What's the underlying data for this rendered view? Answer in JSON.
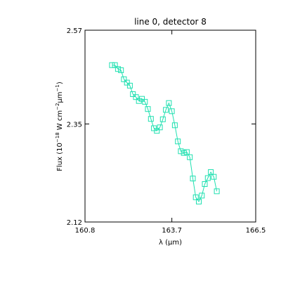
{
  "chart_data": {
    "type": "line",
    "title": "line 0, detector 8",
    "xlabel": "λ (μm)",
    "ylabel_parts": {
      "prefix": "Flux (10",
      "exp1": "−18",
      "mid1": " W cm",
      "exp2": "−2",
      "mu": "μm",
      "exp3": "−1",
      "suffix": ")"
    },
    "xlim": [
      160.8,
      166.5
    ],
    "ylim": [
      2.12,
      2.57
    ],
    "xticks": [
      160.8,
      163.7,
      166.5
    ],
    "xtick_labels": [
      "160.8",
      "163.7",
      "166.5"
    ],
    "yticks": [
      2.12,
      2.35,
      2.57
    ],
    "ytick_labels": [
      "2.12",
      "2.35",
      "2.57"
    ],
    "grid": false,
    "series": [
      {
        "color": "#1fe0b0",
        "marker": "open-square",
        "x": [
          161.7,
          161.8,
          161.9,
          162.0,
          162.1,
          162.2,
          162.3,
          162.4,
          162.5,
          162.6,
          162.7,
          162.8,
          162.9,
          163.0,
          163.1,
          163.2,
          163.3,
          163.4,
          163.5,
          163.6,
          163.7,
          163.8,
          163.9,
          164.0,
          164.1,
          164.2,
          164.3,
          164.4,
          164.5,
          164.6,
          164.7,
          164.8,
          164.9,
          165.0,
          165.1,
          165.2
        ],
        "y": [
          2.488,
          2.488,
          2.479,
          2.476,
          2.455,
          2.447,
          2.44,
          2.42,
          2.413,
          2.404,
          2.409,
          2.402,
          2.385,
          2.362,
          2.34,
          2.334,
          2.342,
          2.361,
          2.383,
          2.399,
          2.38,
          2.347,
          2.309,
          2.286,
          2.282,
          2.284,
          2.272,
          2.222,
          2.178,
          2.168,
          2.182,
          2.209,
          2.223,
          2.237,
          2.226,
          2.192
        ]
      }
    ]
  }
}
